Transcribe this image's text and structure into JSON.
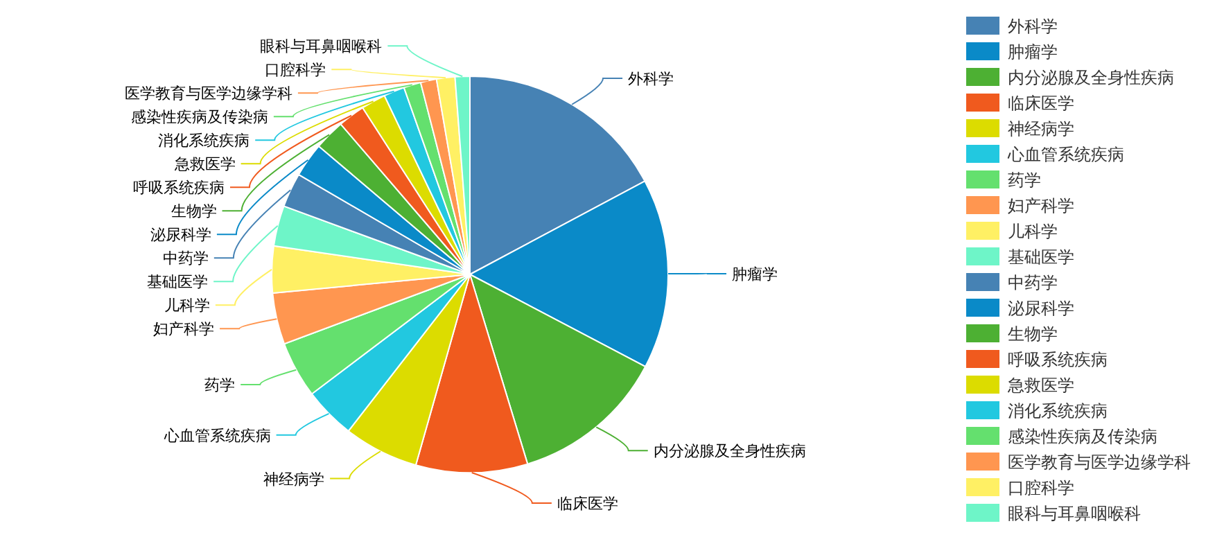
{
  "chart_data": {
    "type": "pie",
    "categories": [
      "外科学",
      "肿瘤学",
      "内分泌腺及全身性疾病",
      "临床医学",
      "神经病学",
      "心血管系统疾病",
      "药学",
      "妇产科学",
      "儿科学",
      "基础医学",
      "中药学",
      "泌尿科学",
      "生物学",
      "呼吸系统疾病",
      "急救医学",
      "消化系统疾病",
      "感染性疾病及传染病",
      "医学教育与医学边缘学科",
      "口腔科学",
      "眼科与耳鼻咽喉科"
    ],
    "values": [
      17.2,
      15.5,
      12.6,
      9.1,
      6.1,
      4.2,
      4.6,
      4.2,
      3.8,
      3.3,
      2.8,
      2.8,
      2.5,
      2.2,
      2.0,
      1.7,
      1.4,
      1.3,
      1.5,
      1.2
    ],
    "colors": [
      "#4682b4",
      "#0a8ac8",
      "#4db033",
      "#f05a1e",
      "#dcdc00",
      "#22c8e0",
      "#64e06e",
      "#ff9650",
      "#fff064",
      "#6ef5c8",
      "#4682b4",
      "#0a8ac8",
      "#4db033",
      "#f05a1e",
      "#dcdc00",
      "#22c8e0",
      "#64e06e",
      "#ff9650",
      "#fff064",
      "#6ef5c8"
    ],
    "legend": "right"
  }
}
